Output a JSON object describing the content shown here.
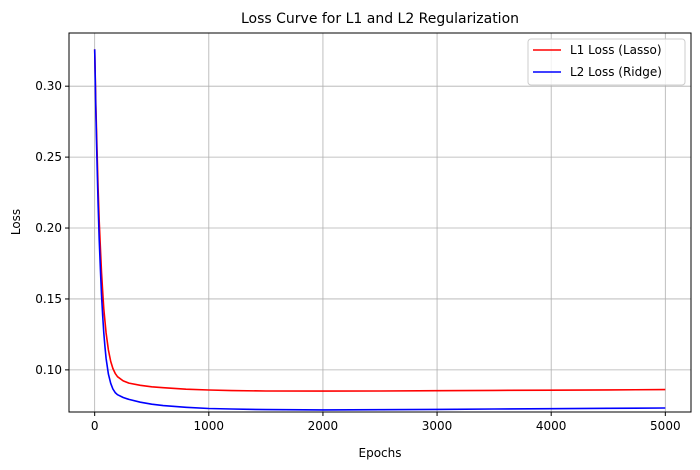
{
  "chart_data": {
    "type": "line",
    "title": "Loss Curve for L1 and L2 Regularization",
    "xlabel": "Epochs",
    "ylabel": "Loss",
    "xlim": [
      -225,
      5225
    ],
    "ylim": [
      0.0703,
      0.3375
    ],
    "xticks": [
      0,
      1000,
      2000,
      3000,
      4000,
      5000
    ],
    "xtick_labels": [
      "0",
      "1000",
      "2000",
      "3000",
      "4000",
      "5000"
    ],
    "yticks": [
      0.1,
      0.15,
      0.2,
      0.25,
      0.3
    ],
    "ytick_labels": [
      "0.10",
      "0.15",
      "0.20",
      "0.25",
      "0.30"
    ],
    "grid": true,
    "legend_position": "top-right",
    "series": [
      {
        "name": "L1 Loss (Lasso)",
        "color": "#ff0000",
        "x": [
          0,
          10,
          20,
          30,
          40,
          50,
          60,
          70,
          80,
          90,
          100,
          120,
          140,
          160,
          180,
          200,
          250,
          300,
          400,
          500,
          600,
          800,
          1000,
          1200,
          1500,
          2000,
          2500,
          3000,
          3500,
          4000,
          4500,
          5000
        ],
        "y": [
          0.326,
          0.288,
          0.256,
          0.228,
          0.205,
          0.186,
          0.169,
          0.155,
          0.143,
          0.134,
          0.126,
          0.114,
          0.106,
          0.101,
          0.0975,
          0.0952,
          0.0922,
          0.0907,
          0.0891,
          0.0881,
          0.0874,
          0.0864,
          0.0858,
          0.0854,
          0.0851,
          0.085,
          0.0851,
          0.0853,
          0.0855,
          0.0857,
          0.0859,
          0.0861
        ]
      },
      {
        "name": "L2 Loss (Ridge)",
        "color": "#0000ff",
        "x": [
          0,
          10,
          20,
          30,
          40,
          50,
          60,
          70,
          80,
          90,
          100,
          120,
          140,
          160,
          180,
          200,
          250,
          300,
          400,
          500,
          600,
          800,
          1000,
          1200,
          1500,
          2000,
          2500,
          3000,
          3500,
          4000,
          4500,
          5000
        ],
        "y": [
          0.326,
          0.283,
          0.247,
          0.217,
          0.192,
          0.171,
          0.153,
          0.138,
          0.126,
          0.116,
          0.108,
          0.097,
          0.0905,
          0.0865,
          0.084,
          0.0825,
          0.0805,
          0.0792,
          0.0772,
          0.0758,
          0.0748,
          0.0736,
          0.0728,
          0.0724,
          0.072,
          0.0718,
          0.0719,
          0.0721,
          0.0724,
          0.0726,
          0.0729,
          0.0731
        ]
      }
    ]
  }
}
